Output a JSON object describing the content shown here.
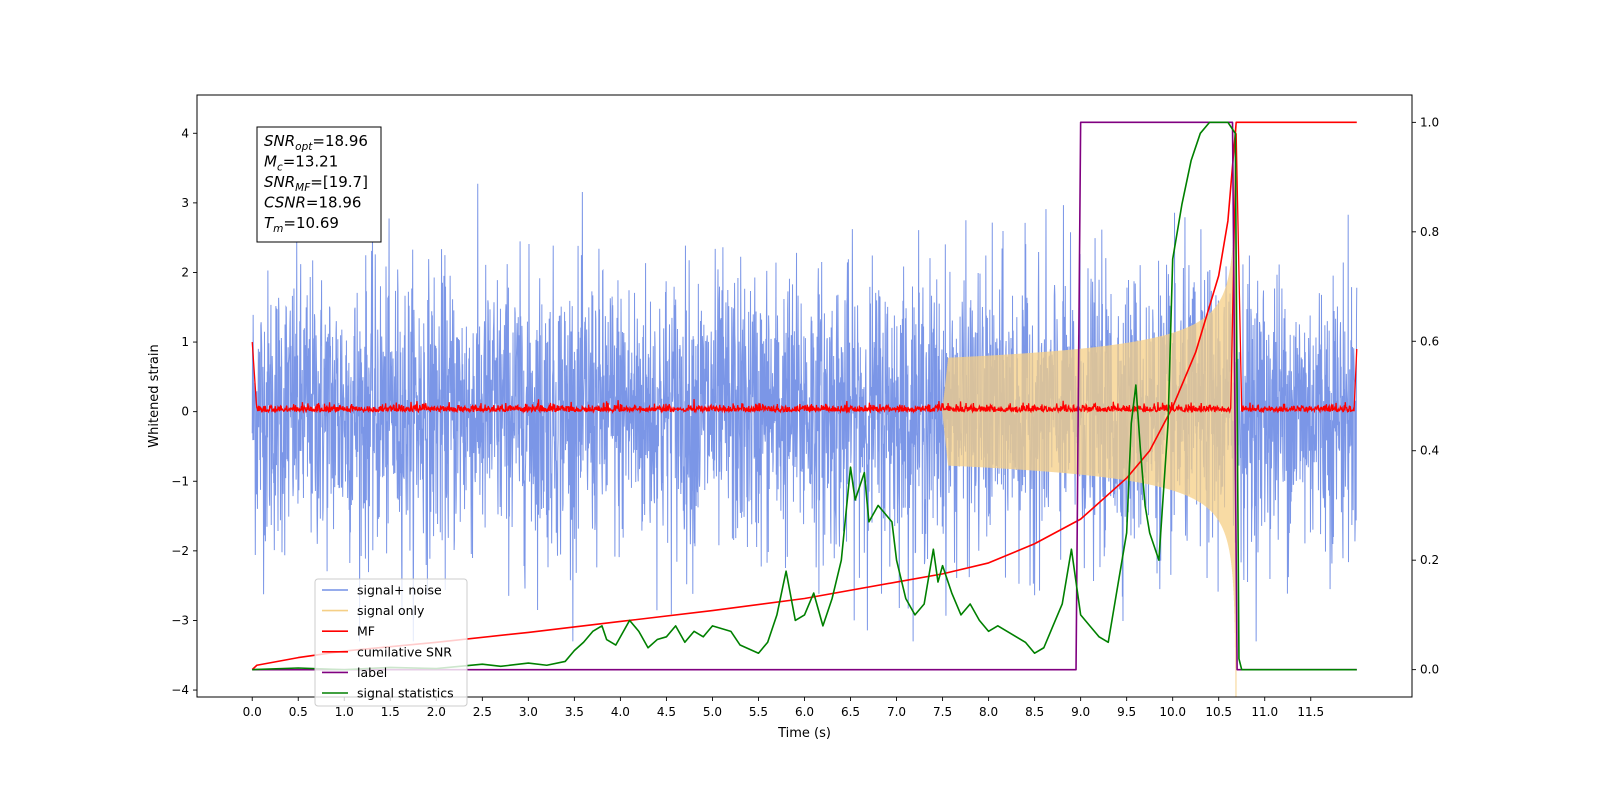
{
  "chart_data": {
    "type": "line",
    "xlabel": "Time (s)",
    "ylabel": "Whitened strain",
    "xlim": [
      -0.6,
      12.6
    ],
    "ylim": [
      -4.1,
      4.55
    ],
    "y2lim": [
      -0.05,
      1.05
    ],
    "x_ticks": [
      0.0,
      0.5,
      1.0,
      1.5,
      2.0,
      2.5,
      3.0,
      3.5,
      4.0,
      4.5,
      5.0,
      5.5,
      6.0,
      6.5,
      7.0,
      7.5,
      8.0,
      8.5,
      9.0,
      9.5,
      10.0,
      10.5,
      11.0,
      11.5
    ],
    "x_tick_labels": [
      "0.0",
      "0.5",
      "1.0",
      "1.5",
      "2.0",
      "2.5",
      "3.0",
      "3.5",
      "4.0",
      "4.5",
      "5.0",
      "5.5",
      "6.0",
      "6.5",
      "7.0",
      "7.5",
      "8.0",
      "8.5",
      "9.0",
      "9.5",
      "10.0",
      "10.5",
      "11.0",
      "11.5"
    ],
    "y_ticks": [
      -4,
      -3,
      -2,
      -1,
      0,
      1,
      2,
      3,
      4
    ],
    "y_tick_labels": [
      "−4",
      "−3",
      "−2",
      "−1",
      "0",
      "1",
      "2",
      "3",
      "4"
    ],
    "y2_ticks": [
      0.0,
      0.2,
      0.4,
      0.6,
      0.8,
      1.0
    ],
    "y2_tick_labels": [
      "0.0",
      "0.2",
      "0.4",
      "0.6",
      "0.8",
      "1.0"
    ],
    "grid": false,
    "legend_position": "lower-left",
    "annotation": {
      "snr_opt": {
        "base": "SNR",
        "sub": "opt",
        "value": "=18.96"
      },
      "mc": {
        "base": "M",
        "sub": "c",
        "value": "=13.21"
      },
      "snr_mf": {
        "base": "SNR",
        "sub": "MF",
        "value": "=[19.7]"
      },
      "csnr": {
        "base": "CSNR",
        "value": "=18.96"
      },
      "tm": {
        "base": "T",
        "sub": "m",
        "value": "=10.69"
      }
    },
    "series": [
      {
        "name": "signal+ noise",
        "color": "#7490e6",
        "axis": "left",
        "kind": "gaussian noise trace",
        "x_range": [
          0.0,
          12.0
        ],
        "sigma": 1.0,
        "approx_range": [
          -3.3,
          3.3
        ]
      },
      {
        "name": "signal only",
        "color": "#f5cf86",
        "axis": "left",
        "kind": "chirp",
        "x_range": [
          7.5,
          10.69
        ],
        "amplitude_at_merger": 4.1
      },
      {
        "name": "MF",
        "color": "#ff0000",
        "axis": "left",
        "kind": "matched-filter output",
        "x": [
          0.0,
          0.02,
          0.05,
          10.6,
          10.69,
          10.75,
          11.98,
          12.0
        ],
        "y": [
          1.0,
          0.2,
          0.02,
          0.02,
          4.0,
          0.02,
          0.1,
          0.9
        ]
      },
      {
        "name": "cumilative SNR",
        "color": "#ff0000",
        "axis": "right",
        "x": [
          0.0,
          0.05,
          0.5,
          1.0,
          2.0,
          3.0,
          4.0,
          5.0,
          6.0,
          7.0,
          7.5,
          8.0,
          8.5,
          9.0,
          9.5,
          9.75,
          10.0,
          10.25,
          10.5,
          10.6,
          10.69,
          12.0
        ],
        "y": [
          0.0,
          0.008,
          0.022,
          0.034,
          0.05,
          0.068,
          0.088,
          0.108,
          0.13,
          0.16,
          0.175,
          0.195,
          0.23,
          0.275,
          0.35,
          0.4,
          0.48,
          0.58,
          0.72,
          0.82,
          1.0,
          1.0
        ]
      },
      {
        "name": "label",
        "color": "#800080",
        "axis": "right",
        "x": [
          0.0,
          8.95,
          9.0,
          10.65,
          10.7,
          12.0
        ],
        "y": [
          0.0,
          0.0,
          1.0,
          1.0,
          0.0,
          0.0
        ]
      },
      {
        "name": "signal statistics",
        "color": "#008000",
        "axis": "right",
        "x": [
          0.0,
          0.5,
          1.0,
          1.5,
          2.0,
          2.5,
          2.7,
          3.0,
          3.2,
          3.4,
          3.5,
          3.6,
          3.7,
          3.8,
          3.85,
          3.95,
          4.1,
          4.2,
          4.3,
          4.4,
          4.5,
          4.6,
          4.7,
          4.8,
          4.9,
          5.0,
          5.1,
          5.2,
          5.3,
          5.5,
          5.6,
          5.7,
          5.8,
          5.9,
          6.0,
          6.1,
          6.2,
          6.3,
          6.4,
          6.5,
          6.55,
          6.65,
          6.7,
          6.8,
          6.9,
          6.95,
          7.0,
          7.1,
          7.2,
          7.3,
          7.4,
          7.45,
          7.5,
          7.6,
          7.7,
          7.8,
          7.9,
          8.0,
          8.1,
          8.2,
          8.4,
          8.5,
          8.6,
          8.7,
          8.8,
          8.9,
          9.0,
          9.1,
          9.2,
          9.3,
          9.4,
          9.5,
          9.55,
          9.6,
          9.65,
          9.7,
          9.75,
          9.85,
          9.95,
          10.0,
          10.1,
          10.2,
          10.3,
          10.4,
          10.6,
          10.68,
          10.72,
          10.75,
          10.8,
          11.0,
          11.5,
          12.0
        ],
        "y": [
          0.0,
          0.003,
          0.0,
          0.004,
          0.002,
          0.01,
          0.006,
          0.012,
          0.008,
          0.015,
          0.035,
          0.05,
          0.07,
          0.08,
          0.055,
          0.045,
          0.09,
          0.07,
          0.04,
          0.055,
          0.06,
          0.08,
          0.05,
          0.07,
          0.06,
          0.08,
          0.075,
          0.07,
          0.045,
          0.03,
          0.05,
          0.1,
          0.18,
          0.09,
          0.1,
          0.14,
          0.08,
          0.13,
          0.2,
          0.37,
          0.31,
          0.36,
          0.27,
          0.3,
          0.28,
          0.27,
          0.2,
          0.13,
          0.1,
          0.12,
          0.22,
          0.16,
          0.19,
          0.14,
          0.1,
          0.12,
          0.09,
          0.07,
          0.08,
          0.07,
          0.05,
          0.03,
          0.04,
          0.08,
          0.12,
          0.22,
          0.1,
          0.08,
          0.06,
          0.05,
          0.15,
          0.25,
          0.45,
          0.52,
          0.4,
          0.3,
          0.25,
          0.2,
          0.45,
          0.75,
          0.85,
          0.93,
          0.98,
          1.0,
          1.0,
          0.98,
          0.02,
          0.0,
          0.0,
          0.0,
          0.0,
          0.0
        ]
      }
    ]
  }
}
